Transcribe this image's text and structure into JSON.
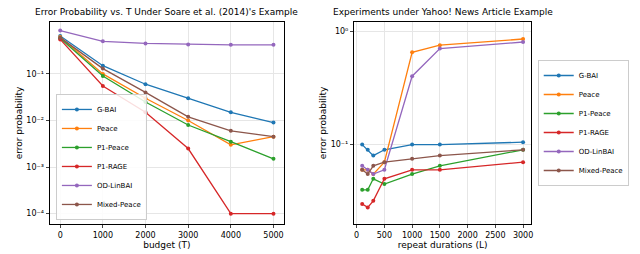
{
  "chart_data": [
    {
      "type": "line",
      "title": "Error Probability vs. T Under Soare et al. (2014)'s Example",
      "x_label": "budget (T)",
      "y_label": "error probability",
      "x": [
        0,
        1000,
        2000,
        3000,
        4000,
        5000
      ],
      "series": [
        {
          "name": "G-BAI",
          "color": "#1f77b4",
          "values": [
            0.65,
            0.15,
            0.06,
            0.03,
            0.015,
            0.009
          ]
        },
        {
          "name": "Peace",
          "color": "#ff7f0e",
          "values": [
            0.62,
            0.1,
            0.03,
            0.01,
            0.003,
            0.0045
          ]
        },
        {
          "name": "P1-Peace",
          "color": "#2ca02c",
          "values": [
            0.58,
            0.09,
            0.025,
            0.008,
            0.0035,
            0.0015
          ]
        },
        {
          "name": "P1-RAGE",
          "color": "#d62728",
          "values": [
            0.55,
            0.055,
            0.015,
            0.0025,
            0.0001,
            0.0001
          ]
        },
        {
          "name": "OD-LinBAI",
          "color": "#9467bd",
          "values": [
            0.85,
            0.5,
            0.45,
            0.43,
            0.42,
            0.42
          ]
        },
        {
          "name": "Mixed-Peace",
          "color": "#8c564b",
          "values": [
            0.6,
            0.13,
            0.04,
            0.012,
            0.006,
            0.0045
          ]
        }
      ],
      "xlim": [
        -250,
        5250
      ],
      "xticks": [
        0,
        1000,
        2000,
        3000,
        4000,
        5000
      ],
      "ylim": [
        6e-05,
        1.3
      ],
      "yticks": [
        {
          "value": 0.0001,
          "label": "10⁻⁴"
        },
        {
          "value": 0.001,
          "label": "10⁻³"
        },
        {
          "value": 0.01,
          "label": "10⁻²"
        },
        {
          "value": 0.1,
          "label": "10⁻¹"
        }
      ],
      "log": "y",
      "grid": true,
      "legend": "lower left",
      "marker": "circle"
    },
    {
      "type": "line",
      "title": "Experiments under Yahoo! News Article Example",
      "x_label": "repeat durations (L)",
      "y_label": "error probability",
      "x": [
        100,
        200,
        300,
        500,
        1000,
        1500,
        3000
      ],
      "series": [
        {
          "name": "G-BAI",
          "color": "#1f77b4",
          "values": [
            0.1,
            0.09,
            0.08,
            0.09,
            0.1,
            0.1,
            0.105
          ]
        },
        {
          "name": "Peace",
          "color": "#ff7f0e",
          "values": [
            0.06,
            0.06,
            0.055,
            0.07,
            0.65,
            0.75,
            0.85
          ]
        },
        {
          "name": "P1-Peace",
          "color": "#2ca02c",
          "values": [
            0.04,
            0.04,
            0.05,
            0.045,
            0.055,
            0.065,
            0.09
          ]
        },
        {
          "name": "P1-RAGE",
          "color": "#d62728",
          "values": [
            0.03,
            0.028,
            0.032,
            0.05,
            0.06,
            0.06,
            0.07
          ]
        },
        {
          "name": "OD-LinBAI",
          "color": "#9467bd",
          "values": [
            0.065,
            0.06,
            0.055,
            0.06,
            0.4,
            0.7,
            0.8
          ]
        },
        {
          "name": "Mixed-Peace",
          "color": "#8c564b",
          "values": [
            0.06,
            0.055,
            0.065,
            0.07,
            0.075,
            0.08,
            0.09
          ]
        }
      ],
      "xlim": [
        -50,
        3150
      ],
      "xticks": [
        0,
        500,
        1000,
        1500,
        2000,
        2500,
        3000
      ],
      "ylim": [
        0.02,
        1.2
      ],
      "yticks": [
        {
          "value": 0.1,
          "label": "10⁻¹"
        },
        {
          "value": 1,
          "label": "10⁰"
        }
      ],
      "log": "y",
      "grid": true,
      "legend": "right",
      "marker": "circle"
    }
  ]
}
